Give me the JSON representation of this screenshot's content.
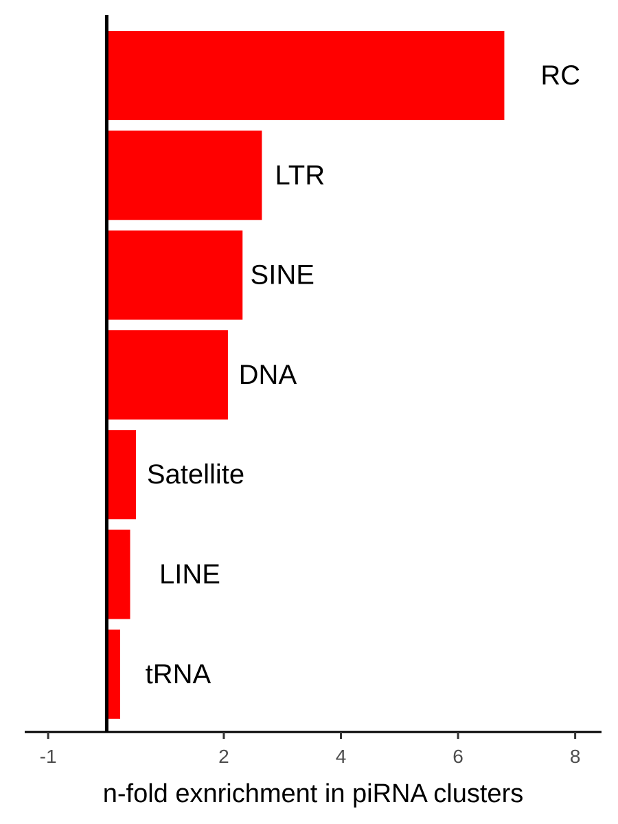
{
  "chart_data": {
    "type": "bar",
    "orientation": "horizontal",
    "categories": [
      "RC",
      "LTR",
      "SINE",
      "DNA",
      "Satellite",
      "LINE",
      "tRNA"
    ],
    "values": [
      6.79,
      2.65,
      2.32,
      2.07,
      0.5,
      0.4,
      0.23
    ],
    "label_positions": [
      7.75,
      3.3,
      3.0,
      2.75,
      1.52,
      1.42,
      1.22
    ],
    "title": "",
    "xlabel": "n-fold exnrichment in piRNA clusters",
    "ylabel": "",
    "xlim": [
      -1.4,
      8.45
    ],
    "xticks": [
      -1,
      2,
      4,
      6,
      8
    ],
    "xtick_labels": [
      "-1",
      "2",
      "4",
      "6",
      "8"
    ],
    "reference_line": 0,
    "grid": false,
    "legend": "none",
    "colors": {
      "bar": "#ff0000",
      "axis": "#000000",
      "tick_text": "#4d4d4d"
    }
  }
}
